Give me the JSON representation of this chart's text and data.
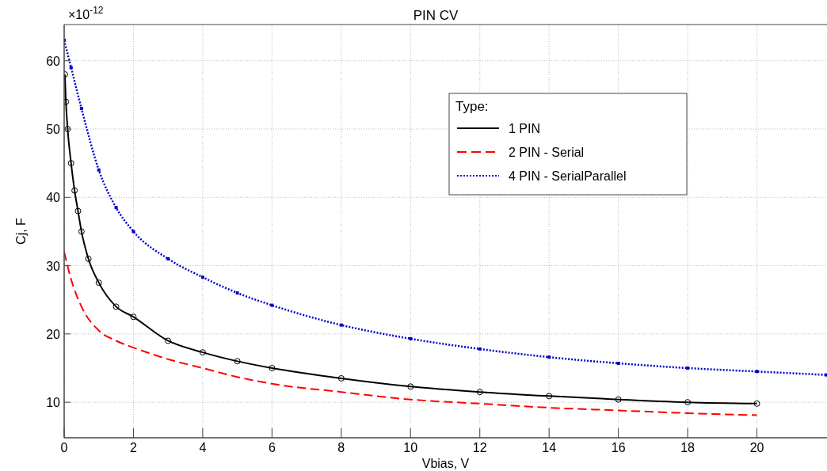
{
  "chart_data": {
    "type": "line",
    "title": "PIN CV",
    "xlabel": "Vbias, V",
    "ylabel": "Cj, F",
    "legend_title": "Type:",
    "annotations": [
      "×10$^{-12}$"
    ],
    "xlim": [
      0,
      22
    ],
    "xticks": [
      0,
      2,
      4,
      6,
      8,
      10,
      12,
      14,
      16,
      18,
      20
    ],
    "ylim": [
      4.8,
      65.3
    ],
    "yticks": [
      10,
      20,
      30,
      40,
      50,
      60
    ],
    "grid": true,
    "legend": "top right",
    "series": [
      {
        "name": "1 PIN",
        "color": "#000000",
        "marker": "circle",
        "line_style": "solid",
        "x": [
          0.02,
          0.05,
          0.1,
          0.2,
          0.3,
          0.4,
          0.5,
          0.7,
          1,
          1.5,
          2,
          3,
          4,
          5,
          6,
          8,
          10,
          12,
          14,
          16,
          18,
          20
        ],
        "values": [
          58,
          54,
          50,
          45,
          41,
          38,
          35,
          31,
          27.5,
          24,
          22.5,
          19,
          17.3,
          16,
          15,
          13.5,
          12.3,
          11.5,
          10.9,
          10.4,
          10,
          9.8
        ]
      },
      {
        "name": "2 PIN - Serial",
        "color": "#ff0000",
        "marker": "none",
        "line_style": "dashed",
        "x": [
          0,
          0.2,
          0.5,
          1,
          1.5,
          2,
          3,
          4,
          5,
          6,
          8,
          10,
          12,
          14,
          16,
          18,
          20
        ],
        "values": [
          32,
          28,
          24,
          20.5,
          19,
          18,
          16.3,
          15,
          13.7,
          12.7,
          11.5,
          10.4,
          9.8,
          9.2,
          8.8,
          8.4,
          8.1
        ]
      },
      {
        "name": "4 PIN - SerialParallel",
        "color": "#0000cc",
        "marker": "square",
        "line_style": "dotted",
        "x": [
          0,
          0.2,
          0.5,
          1,
          1.5,
          2,
          3,
          4,
          5,
          6,
          8,
          10,
          12,
          14,
          16,
          18,
          20,
          22
        ],
        "values": [
          63,
          59,
          53,
          44,
          38.5,
          35,
          31,
          28.3,
          26,
          24.2,
          21.3,
          19.3,
          17.8,
          16.6,
          15.7,
          15,
          14.5,
          14
        ]
      }
    ]
  }
}
